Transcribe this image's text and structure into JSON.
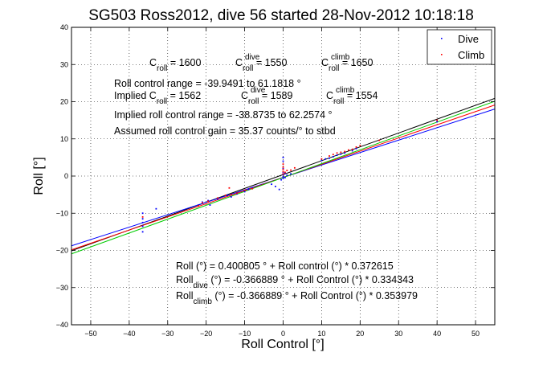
{
  "chart_data": {
    "type": "scatter",
    "title": "SG503 Ross2012, dive 56 started 28-Nov-2012 10:18:18",
    "xlabel": "Roll Control [°]",
    "ylabel": "Roll [°]",
    "xlim": [
      -55,
      55
    ],
    "ylim": [
      -40,
      40
    ],
    "xticks": [
      -50,
      -40,
      -30,
      -20,
      -10,
      0,
      10,
      20,
      30,
      40,
      50
    ],
    "yticks": [
      -40,
      -30,
      -20,
      -10,
      0,
      10,
      20,
      30,
      40
    ],
    "grid": true,
    "legend_position": "top-right",
    "legend": [
      {
        "label": "Dive",
        "color": "#0000ff"
      },
      {
        "label": "Climb",
        "color": "#ff0000"
      }
    ],
    "series": [
      {
        "name": "Dive",
        "color": "#0000ff",
        "points": [
          [
            -36.5,
            -10
          ],
          [
            -36.5,
            -11.5
          ],
          [
            -36.5,
            -12.5
          ],
          [
            -36.5,
            -13.5
          ],
          [
            -36.5,
            -15
          ],
          [
            -33,
            -8.8
          ],
          [
            -22,
            -7.8
          ],
          [
            -21,
            -7
          ],
          [
            -19.5,
            -6.6
          ],
          [
            -19,
            -7.8
          ],
          [
            -17,
            -6.2
          ],
          [
            -14.5,
            -5.2
          ],
          [
            -13.5,
            -5.6
          ],
          [
            -12,
            -4.8
          ],
          [
            -10,
            -4.2
          ],
          [
            -9,
            -3.6
          ],
          [
            -8,
            -3.2
          ],
          [
            -3,
            -2.2
          ],
          [
            -2,
            -2.8
          ],
          [
            -1,
            -3.6
          ],
          [
            -0.5,
            -1
          ],
          [
            0,
            -0.6
          ],
          [
            0,
            -0.2
          ],
          [
            0,
            0.4
          ],
          [
            0,
            1
          ],
          [
            0,
            2
          ],
          [
            0,
            4
          ],
          [
            0,
            5
          ],
          [
            0.5,
            -0.4
          ],
          [
            0.5,
            0.8
          ],
          [
            1,
            0.2
          ],
          [
            2,
            0.6
          ],
          [
            10,
            4.2
          ],
          [
            11,
            4.6
          ],
          [
            12,
            4.8
          ],
          [
            13,
            5.2
          ],
          [
            14,
            5.6
          ],
          [
            15,
            5.9
          ],
          [
            16,
            6.2
          ],
          [
            18,
            6.8
          ],
          [
            19,
            7.4
          ],
          [
            40,
            14.6
          ]
        ]
      },
      {
        "name": "Climb",
        "color": "#ff0000",
        "points": [
          [
            -36.5,
            -11
          ],
          [
            -22,
            -8
          ],
          [
            -21,
            -7.2
          ],
          [
            -19.5,
            -6.8
          ],
          [
            -17,
            -5.9
          ],
          [
            -15,
            -5.2
          ],
          [
            -14,
            -3.2
          ],
          [
            -13.5,
            -5
          ],
          [
            -12,
            -4.6
          ],
          [
            -10,
            -3.8
          ],
          [
            -8,
            -3.4
          ],
          [
            0,
            0.6
          ],
          [
            0,
            1.2
          ],
          [
            0,
            1.8
          ],
          [
            0,
            2.4
          ],
          [
            0,
            3.2
          ],
          [
            0.5,
            1
          ],
          [
            1,
            1.5
          ],
          [
            2,
            1.6
          ],
          [
            3,
            2.2
          ],
          [
            10,
            4.6
          ],
          [
            12,
            5.4
          ],
          [
            13,
            5.8
          ],
          [
            14,
            6.2
          ],
          [
            15,
            6.4
          ],
          [
            16,
            6.6
          ],
          [
            17,
            7
          ],
          [
            18,
            7.2
          ],
          [
            19,
            7.8
          ],
          [
            20,
            8.2
          ],
          [
            25,
            9.6
          ],
          [
            40,
            15
          ]
        ]
      }
    ],
    "fit_lines": [
      {
        "name": "Roll fit",
        "color": "#000000",
        "intercept": 0.400805,
        "slope": 0.372615
      },
      {
        "name": "Roll dive fit",
        "color": "#0000ff",
        "intercept": -0.366889,
        "slope": 0.334343
      },
      {
        "name": "Roll climb fit",
        "color": "#ff0000",
        "intercept": -0.366889,
        "slope": 0.353979
      },
      {
        "name": "Implied fit",
        "color": "#00cc00",
        "intercept": -0.4,
        "slope": 0.373
      }
    ],
    "annotations": {
      "c_roll_row": [
        {
          "label": "C",
          "sub": "roll",
          "sup": "",
          "value": " = 1600"
        },
        {
          "label": "C",
          "sub": "roll",
          "sup": "dive",
          "value": " = 1550"
        },
        {
          "label": "C",
          "sub": "roll",
          "sup": "climb",
          "value": " = 1650"
        }
      ],
      "range_text": "Roll control range = -39.9491 to 61.1818 °",
      "implied_row": [
        {
          "label": "Implied C",
          "sub": "roll",
          "sup": "",
          "value": " = 1562"
        },
        {
          "label": "C",
          "sub": "roll",
          "sup": "dive",
          "value": " = 1589"
        },
        {
          "label": "C",
          "sub": "roll",
          "sup": "climb",
          "value": " = 1554"
        }
      ],
      "implied_range_text": "Implied roll control range = -38.8735 to 62.2574 °",
      "gain_text": "Assumed roll control gain = 35.37 counts/° to stbd",
      "fit_text_1": "Roll (°) = 0.400805 ° + Roll control (°) * 0.372615",
      "fit_text_2_main": "Roll",
      "fit_text_2_sub": "dive",
      "fit_text_2_rest": " (°) = -0.366889 ° + Roll Control (°) * 0.334343",
      "fit_text_3_main": "Roll",
      "fit_text_3_sub": "climb",
      "fit_text_3_rest": " (°) = -0.366889 ° + Roll Control (°) * 0.353979"
    }
  }
}
